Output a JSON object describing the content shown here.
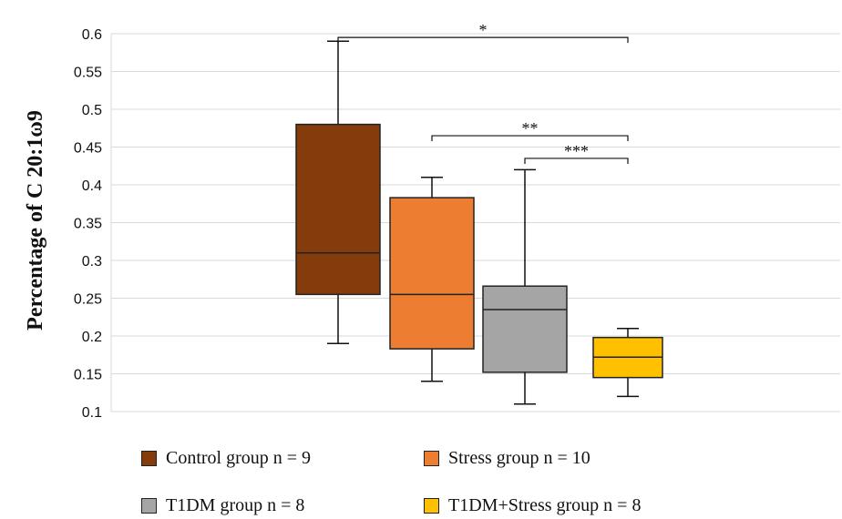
{
  "chart_data": {
    "type": "box",
    "ylabel": "Percentage of C 20:1ω9",
    "ylim": [
      0.1,
      0.6
    ],
    "yticks": [
      0.1,
      0.15,
      0.2,
      0.25,
      0.3,
      0.35,
      0.4,
      0.45,
      0.5,
      0.55,
      0.6
    ],
    "ytick_labels": [
      "0.1",
      "0.15",
      "0.2",
      "0.25",
      "0.3",
      "0.35",
      "0.4",
      "0.45",
      "0.5",
      "0.55",
      "0.6"
    ],
    "grid": true,
    "series": [
      {
        "name": "Control group n = 9",
        "color": "#843c0c",
        "min": 0.19,
        "q1": 0.255,
        "median": 0.31,
        "q3": 0.48,
        "max": 0.59
      },
      {
        "name": "Stress group n = 10",
        "color": "#ed7d31",
        "min": 0.14,
        "q1": 0.183,
        "median": 0.255,
        "q3": 0.383,
        "max": 0.41
      },
      {
        "name": "T1DM group n = 8",
        "color": "#a5a5a5",
        "min": 0.11,
        "q1": 0.152,
        "median": 0.235,
        "q3": 0.266,
        "max": 0.42
      },
      {
        "name": "T1DM+Stress group n = 8",
        "color": "#ffc000",
        "min": 0.12,
        "q1": 0.145,
        "median": 0.172,
        "q3": 0.198,
        "max": 0.21
      }
    ],
    "significance": [
      {
        "from": 0,
        "to": 3,
        "label": "*",
        "y": 0.595
      },
      {
        "from": 1,
        "to": 3,
        "label": "**",
        "y": 0.465
      },
      {
        "from": 2,
        "to": 3,
        "label": "***",
        "y": 0.435
      }
    ],
    "legend_position": "bottom"
  }
}
